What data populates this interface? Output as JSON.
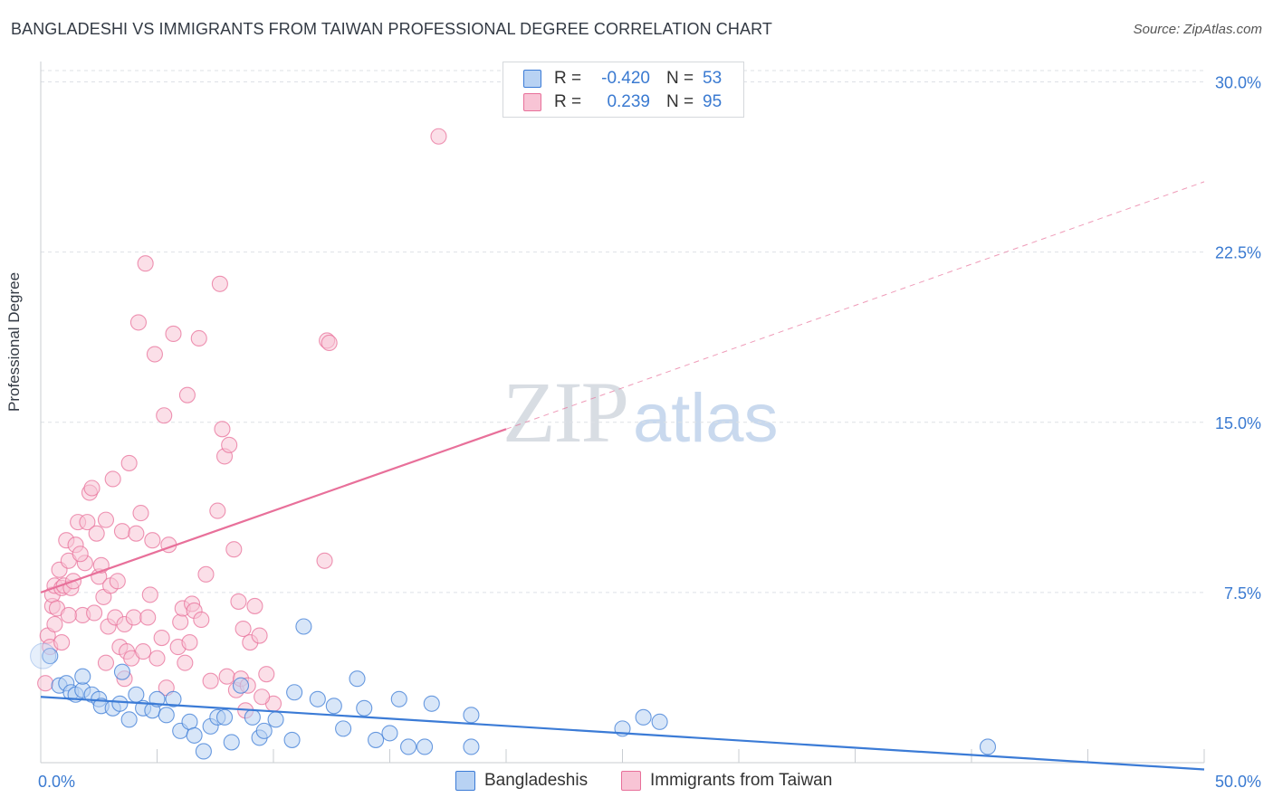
{
  "title": "BANGLADESHI VS IMMIGRANTS FROM TAIWAN PROFESSIONAL DEGREE CORRELATION CHART",
  "source_label": "Source:",
  "source_value": "ZipAtlas.com",
  "watermark": {
    "zip": "ZIP",
    "atlas": "atlas"
  },
  "colors": {
    "blue": "#3b7bd6",
    "blue_fill": "#b8d2f3",
    "pink": "#e8709a",
    "pink_fill": "#f8c4d5",
    "tick_label": "#3a7ad1",
    "grid": "#dde1e6"
  },
  "legend": {
    "rows": [
      {
        "r_label": "R =",
        "r_value": "-0.420",
        "n_label": "N =",
        "n_value": "53"
      },
      {
        "r_label": "R =",
        "r_value": "0.239",
        "n_label": "N =",
        "n_value": "95"
      }
    ]
  },
  "chart_data": {
    "type": "scatter",
    "title": "BANGLADESHI VS IMMIGRANTS FROM TAIWAN PROFESSIONAL DEGREE CORRELATION CHART",
    "xlabel": "",
    "ylabel": "Professional Degree",
    "xlim": [
      0,
      50
    ],
    "ylim": [
      0,
      30.5
    ],
    "x_tick_labels": [
      "0.0%",
      "50.0%"
    ],
    "y_ticks": [
      7.5,
      15.0,
      22.5,
      30.0
    ],
    "y_tick_labels": [
      "7.5%",
      "15.0%",
      "22.5%",
      "30.0%"
    ],
    "grid": true,
    "legend_position": "top-center",
    "series": [
      {
        "name": "Bangladeshis",
        "r": -0.42,
        "n": 53,
        "trend": {
          "x0": 0,
          "y0": 2.9,
          "x1": 50,
          "y1": -0.3,
          "dashed_from_x": 47.5
        },
        "points": [
          [
            0.4,
            4.7
          ],
          [
            0.8,
            3.4
          ],
          [
            1.1,
            3.5
          ],
          [
            1.3,
            3.1
          ],
          [
            1.5,
            3.0
          ],
          [
            1.8,
            3.2
          ],
          [
            1.8,
            3.8
          ],
          [
            2.2,
            3.0
          ],
          [
            2.5,
            2.8
          ],
          [
            2.6,
            2.5
          ],
          [
            3.1,
            2.4
          ],
          [
            3.4,
            2.6
          ],
          [
            3.5,
            4.0
          ],
          [
            3.8,
            1.9
          ],
          [
            4.1,
            3.0
          ],
          [
            4.4,
            2.4
          ],
          [
            4.8,
            2.3
          ],
          [
            5.0,
            2.8
          ],
          [
            5.4,
            2.1
          ],
          [
            5.7,
            2.8
          ],
          [
            6.0,
            1.4
          ],
          [
            6.4,
            1.8
          ],
          [
            6.6,
            1.2
          ],
          [
            7.0,
            0.5
          ],
          [
            7.3,
            1.6
          ],
          [
            7.6,
            2.0
          ],
          [
            7.9,
            2.0
          ],
          [
            8.2,
            0.9
          ],
          [
            8.6,
            3.4
          ],
          [
            9.1,
            2.0
          ],
          [
            9.4,
            1.1
          ],
          [
            9.6,
            1.4
          ],
          [
            10.1,
            1.9
          ],
          [
            10.8,
            1.0
          ],
          [
            10.9,
            3.1
          ],
          [
            11.3,
            6.0
          ],
          [
            11.9,
            2.8
          ],
          [
            12.6,
            2.5
          ],
          [
            13.0,
            1.5
          ],
          [
            13.6,
            3.7
          ],
          [
            13.9,
            2.4
          ],
          [
            14.4,
            1.0
          ],
          [
            15.0,
            1.3
          ],
          [
            15.4,
            2.8
          ],
          [
            15.8,
            0.7
          ],
          [
            16.5,
            0.7
          ],
          [
            16.8,
            2.6
          ],
          [
            18.5,
            0.7
          ],
          [
            18.5,
            2.1
          ],
          [
            25.0,
            1.5
          ],
          [
            25.9,
            2.0
          ],
          [
            26.6,
            1.8
          ],
          [
            40.7,
            0.7
          ]
        ]
      },
      {
        "name": "Immigrants from Taiwan",
        "r": 0.239,
        "n": 95,
        "trend": {
          "x0": 0,
          "y0": 7.5,
          "x1": 20,
          "y1": 14.7,
          "dashed_to_x": 50,
          "dashed_to_y": 25.6
        },
        "points": [
          [
            0.2,
            3.5
          ],
          [
            0.3,
            5.6
          ],
          [
            0.4,
            5.1
          ],
          [
            0.5,
            6.9
          ],
          [
            0.5,
            7.4
          ],
          [
            0.6,
            7.8
          ],
          [
            0.7,
            6.8
          ],
          [
            0.8,
            8.5
          ],
          [
            0.9,
            7.7
          ],
          [
            1.0,
            7.8
          ],
          [
            1.1,
            9.8
          ],
          [
            1.2,
            8.9
          ],
          [
            1.3,
            7.7
          ],
          [
            1.4,
            8.0
          ],
          [
            1.5,
            9.6
          ],
          [
            1.6,
            10.6
          ],
          [
            1.8,
            6.5
          ],
          [
            1.9,
            8.8
          ],
          [
            2.0,
            10.6
          ],
          [
            2.1,
            11.9
          ],
          [
            2.2,
            12.1
          ],
          [
            2.3,
            6.6
          ],
          [
            2.4,
            10.1
          ],
          [
            2.5,
            8.2
          ],
          [
            2.6,
            8.7
          ],
          [
            2.7,
            7.3
          ],
          [
            2.8,
            10.7
          ],
          [
            2.9,
            6.0
          ],
          [
            3.0,
            7.8
          ],
          [
            3.1,
            12.5
          ],
          [
            3.2,
            6.4
          ],
          [
            3.3,
            8.0
          ],
          [
            3.4,
            5.1
          ],
          [
            3.5,
            10.2
          ],
          [
            3.6,
            6.1
          ],
          [
            3.7,
            4.9
          ],
          [
            3.8,
            13.2
          ],
          [
            3.9,
            4.6
          ],
          [
            4.0,
            6.4
          ],
          [
            4.1,
            10.1
          ],
          [
            4.2,
            19.4
          ],
          [
            4.3,
            11.0
          ],
          [
            4.4,
            4.9
          ],
          [
            4.5,
            22.0
          ],
          [
            4.6,
            6.4
          ],
          [
            4.7,
            7.4
          ],
          [
            4.8,
            9.8
          ],
          [
            4.9,
            18.0
          ],
          [
            5.0,
            4.6
          ],
          [
            5.2,
            5.5
          ],
          [
            5.3,
            15.3
          ],
          [
            5.5,
            9.6
          ],
          [
            5.7,
            18.9
          ],
          [
            5.9,
            5.1
          ],
          [
            6.0,
            6.2
          ],
          [
            6.1,
            6.8
          ],
          [
            6.3,
            16.2
          ],
          [
            6.4,
            5.3
          ],
          [
            6.5,
            7.0
          ],
          [
            6.6,
            6.7
          ],
          [
            6.8,
            18.7
          ],
          [
            6.9,
            6.3
          ],
          [
            7.1,
            8.3
          ],
          [
            7.3,
            3.6
          ],
          [
            7.6,
            11.1
          ],
          [
            7.7,
            21.1
          ],
          [
            7.8,
            14.7
          ],
          [
            7.9,
            13.5
          ],
          [
            8.0,
            3.8
          ],
          [
            8.1,
            14.0
          ],
          [
            8.3,
            9.4
          ],
          [
            8.4,
            3.2
          ],
          [
            8.5,
            7.1
          ],
          [
            8.6,
            3.7
          ],
          [
            8.7,
            5.9
          ],
          [
            8.8,
            2.3
          ],
          [
            9.0,
            5.3
          ],
          [
            9.2,
            6.9
          ],
          [
            9.4,
            5.6
          ],
          [
            9.7,
            3.9
          ],
          [
            10.0,
            2.6
          ],
          [
            12.2,
            8.9
          ],
          [
            12.3,
            18.6
          ],
          [
            12.4,
            18.5
          ],
          [
            17.1,
            27.6
          ],
          [
            1.2,
            6.5
          ],
          [
            0.9,
            5.3
          ],
          [
            2.8,
            4.4
          ],
          [
            3.6,
            3.7
          ],
          [
            5.4,
            3.3
          ],
          [
            6.2,
            4.4
          ],
          [
            8.9,
            3.4
          ],
          [
            1.7,
            9.2
          ],
          [
            0.6,
            6.1
          ],
          [
            9.5,
            2.9
          ]
        ]
      }
    ]
  }
}
